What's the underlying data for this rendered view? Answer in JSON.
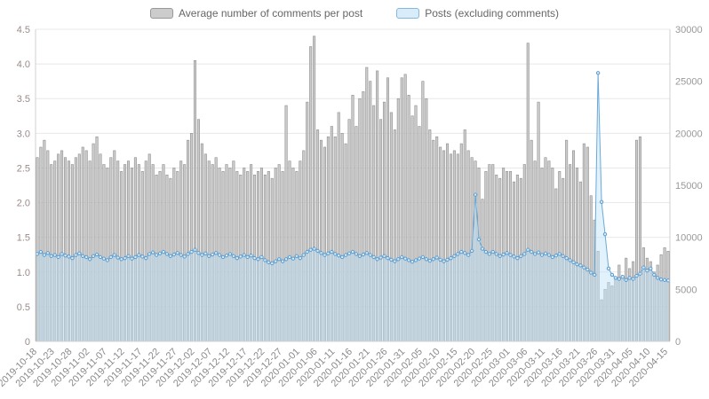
{
  "legend": {
    "series1": "Average number of comments per post",
    "series2": "Posts (excluding comments)"
  },
  "colors": {
    "bar_fill": "#cccccc",
    "bar_stroke": "#8f8f8f",
    "bar_swatch_fill": "#cccccc",
    "bar_swatch_stroke": "#999999",
    "line": "#6aa9d8",
    "marker_stroke": "#5f9ecf",
    "marker_fill": "#ddeefa",
    "area_fill": "rgba(190,226,248,0.45)",
    "line_swatch_fill": "#d9ecf9",
    "line_swatch_stroke": "#85b8dc",
    "grid": "#e8e8e8",
    "axis_line": "#d0d0d0",
    "axis_left_label": "#9c8a8a",
    "axis_right_label": "#999999",
    "x_label": "#8a8a8a"
  },
  "chart_data": {
    "type": "bar",
    "title": "",
    "xlabel": "",
    "ylabel_left": "",
    "ylabel_right": "",
    "left_axis": {
      "min": 0,
      "max": 4.5,
      "step": 0.5
    },
    "right_axis": {
      "min": 0,
      "max": 30000,
      "step": 5000
    },
    "x_tick_every": 5,
    "grid": true,
    "legend_position": "top",
    "x": [
      "2019-10-18",
      "2019-10-19",
      "2019-10-20",
      "2019-10-21",
      "2019-10-22",
      "2019-10-23",
      "2019-10-24",
      "2019-10-25",
      "2019-10-26",
      "2019-10-27",
      "2019-10-28",
      "2019-10-29",
      "2019-10-30",
      "2019-10-31",
      "2019-11-01",
      "2019-11-02",
      "2019-11-03",
      "2019-11-04",
      "2019-11-05",
      "2019-11-06",
      "2019-11-07",
      "2019-11-08",
      "2019-11-09",
      "2019-11-10",
      "2019-11-11",
      "2019-11-12",
      "2019-11-13",
      "2019-11-14",
      "2019-11-15",
      "2019-11-16",
      "2019-11-17",
      "2019-11-18",
      "2019-11-19",
      "2019-11-20",
      "2019-11-21",
      "2019-11-22",
      "2019-11-23",
      "2019-11-24",
      "2019-11-25",
      "2019-11-26",
      "2019-11-27",
      "2019-11-28",
      "2019-11-29",
      "2019-11-30",
      "2019-12-01",
      "2019-12-02",
      "2019-12-03",
      "2019-12-04",
      "2019-12-05",
      "2019-12-06",
      "2019-12-07",
      "2019-12-08",
      "2019-12-09",
      "2019-12-10",
      "2019-12-11",
      "2019-12-12",
      "2019-12-13",
      "2019-12-14",
      "2019-12-15",
      "2019-12-16",
      "2019-12-17",
      "2019-12-18",
      "2019-12-19",
      "2019-12-20",
      "2019-12-21",
      "2019-12-22",
      "2019-12-23",
      "2019-12-24",
      "2019-12-25",
      "2019-12-26",
      "2019-12-27",
      "2019-12-28",
      "2019-12-29",
      "2019-12-30",
      "2019-12-31",
      "2020-01-01",
      "2020-01-02",
      "2020-01-03",
      "2020-01-04",
      "2020-01-05",
      "2020-01-06",
      "2020-01-07",
      "2020-01-08",
      "2020-01-09",
      "2020-01-10",
      "2020-01-11",
      "2020-01-12",
      "2020-01-13",
      "2020-01-14",
      "2020-01-15",
      "2020-01-16",
      "2020-01-17",
      "2020-01-18",
      "2020-01-19",
      "2020-01-20",
      "2020-01-21",
      "2020-01-22",
      "2020-01-23",
      "2020-01-24",
      "2020-01-25",
      "2020-01-26",
      "2020-01-27",
      "2020-01-28",
      "2020-01-29",
      "2020-01-30",
      "2020-01-31",
      "2020-02-01",
      "2020-02-02",
      "2020-02-03",
      "2020-02-04",
      "2020-02-05",
      "2020-02-06",
      "2020-02-07",
      "2020-02-08",
      "2020-02-09",
      "2020-02-10",
      "2020-02-11",
      "2020-02-12",
      "2020-02-13",
      "2020-02-14",
      "2020-02-15",
      "2020-02-16",
      "2020-02-17",
      "2020-02-18",
      "2020-02-19",
      "2020-02-20",
      "2020-02-21",
      "2020-02-22",
      "2020-02-23",
      "2020-02-24",
      "2020-02-25",
      "2020-02-26",
      "2020-02-27",
      "2020-02-28",
      "2020-02-29",
      "2020-03-01",
      "2020-03-02",
      "2020-03-03",
      "2020-03-04",
      "2020-03-05",
      "2020-03-06",
      "2020-03-07",
      "2020-03-08",
      "2020-03-09",
      "2020-03-10",
      "2020-03-11",
      "2020-03-12",
      "2020-03-13",
      "2020-03-14",
      "2020-03-15",
      "2020-03-16",
      "2020-03-17",
      "2020-03-18",
      "2020-03-19",
      "2020-03-20",
      "2020-03-21",
      "2020-03-22",
      "2020-03-23",
      "2020-03-24",
      "2020-03-25",
      "2020-03-26",
      "2020-03-27",
      "2020-03-28",
      "2020-03-29",
      "2020-03-30",
      "2020-03-31",
      "2020-04-01",
      "2020-04-02",
      "2020-04-03",
      "2020-04-04",
      "2020-04-05",
      "2020-04-06",
      "2020-04-07",
      "2020-04-08",
      "2020-04-09",
      "2020-04-10",
      "2020-04-11",
      "2020-04-12",
      "2020-04-13",
      "2020-04-14",
      "2020-04-15"
    ],
    "series": [
      {
        "name": "Average number of comments per post",
        "type": "bar",
        "axis": "left",
        "values": [
          2.65,
          2.8,
          2.9,
          2.75,
          2.55,
          2.6,
          2.7,
          2.75,
          2.65,
          2.6,
          2.55,
          2.65,
          2.7,
          2.8,
          2.75,
          2.6,
          2.85,
          2.95,
          2.7,
          2.55,
          2.5,
          2.65,
          2.75,
          2.6,
          2.45,
          2.55,
          2.6,
          2.5,
          2.65,
          2.55,
          2.45,
          2.6,
          2.7,
          2.55,
          2.4,
          2.45,
          2.55,
          2.4,
          2.35,
          2.5,
          2.45,
          2.6,
          2.55,
          2.9,
          3.0,
          4.05,
          3.2,
          2.85,
          2.7,
          2.6,
          2.55,
          2.65,
          2.5,
          2.45,
          2.55,
          2.5,
          2.6,
          2.45,
          2.4,
          2.5,
          2.45,
          2.55,
          2.4,
          2.45,
          2.5,
          2.4,
          2.45,
          2.35,
          2.5,
          2.55,
          2.45,
          3.4,
          2.6,
          2.5,
          2.45,
          2.6,
          2.75,
          3.45,
          4.25,
          4.4,
          3.05,
          2.9,
          2.8,
          2.95,
          3.1,
          2.95,
          3.3,
          3.0,
          2.85,
          3.2,
          3.55,
          3.1,
          3.5,
          3.6,
          3.95,
          3.75,
          3.4,
          3.9,
          3.2,
          3.45,
          3.8,
          3.3,
          3.05,
          3.5,
          3.8,
          3.85,
          3.55,
          3.25,
          3.4,
          3.1,
          3.75,
          3.5,
          3.05,
          2.9,
          2.95,
          2.8,
          2.75,
          2.85,
          2.7,
          2.75,
          2.7,
          2.85,
          3.05,
          2.75,
          2.65,
          2.6,
          2.5,
          2.05,
          2.45,
          2.55,
          2.55,
          2.4,
          2.35,
          2.5,
          2.45,
          2.45,
          2.3,
          2.4,
          2.35,
          2.55,
          4.3,
          2.9,
          2.6,
          3.45,
          2.5,
          2.65,
          2.6,
          2.5,
          2.2,
          2.45,
          2.35,
          2.9,
          2.55,
          2.75,
          2.5,
          2.3,
          2.85,
          2.8,
          2.1,
          1.75,
          1.3,
          0.6,
          0.75,
          0.85,
          0.8,
          0.9,
          1.1,
          0.95,
          1.2,
          1.05,
          1.15,
          2.9,
          2.95,
          1.35,
          1.2,
          1.15,
          1.0,
          1.1,
          1.25,
          1.35,
          1.3
        ]
      },
      {
        "name": "Posts (excluding comments)",
        "type": "line",
        "axis": "right",
        "values": [
          8400,
          8600,
          8300,
          8500,
          8200,
          8300,
          8100,
          8400,
          8250,
          8150,
          8000,
          8300,
          8450,
          8200,
          8100,
          7900,
          8200,
          8350,
          8100,
          7950,
          7800,
          8100,
          8300,
          8050,
          7900,
          8000,
          8200,
          7950,
          8100,
          8300,
          8150,
          8000,
          8400,
          8550,
          8300,
          8450,
          8600,
          8400,
          8200,
          8350,
          8500,
          8300,
          8150,
          8400,
          8600,
          8800,
          8500,
          8300,
          8450,
          8200,
          8350,
          8500,
          8300,
          8100,
          8250,
          8400,
          8200,
          8000,
          8150,
          8300,
          8100,
          8250,
          8000,
          7900,
          8100,
          7800,
          7600,
          7500,
          7700,
          7900,
          7700,
          7900,
          8100,
          7950,
          8200,
          8000,
          8300,
          8600,
          8800,
          8900,
          8700,
          8500,
          8300,
          8450,
          8600,
          8400,
          8250,
          8100,
          8300,
          8450,
          8600,
          8400,
          8200,
          8350,
          8500,
          8300,
          8100,
          7900,
          8050,
          8200,
          8000,
          7850,
          7700,
          7900,
          8100,
          7950,
          7800,
          7650,
          7800,
          7950,
          8100,
          7900,
          7750,
          7900,
          8050,
          7850,
          7700,
          7850,
          8000,
          8200,
          8400,
          8600,
          8500,
          8300,
          8700,
          14100,
          9800,
          8900,
          8600,
          8400,
          8600,
          8400,
          8200,
          8350,
          8500,
          8300,
          8150,
          8000,
          8200,
          8400,
          8800,
          8600,
          8400,
          8550,
          8300,
          8450,
          8300,
          8100,
          8250,
          8400,
          8200,
          8000,
          7800,
          7600,
          7400,
          7300,
          7100,
          6900,
          6600,
          6400,
          25800,
          13400,
          10300,
          7000,
          6400,
          6100,
          6000,
          6200,
          5900,
          6100,
          6000,
          6300,
          6500,
          7100,
          6800,
          7000,
          6400,
          6100,
          5950,
          5900,
          5850
        ]
      }
    ]
  }
}
